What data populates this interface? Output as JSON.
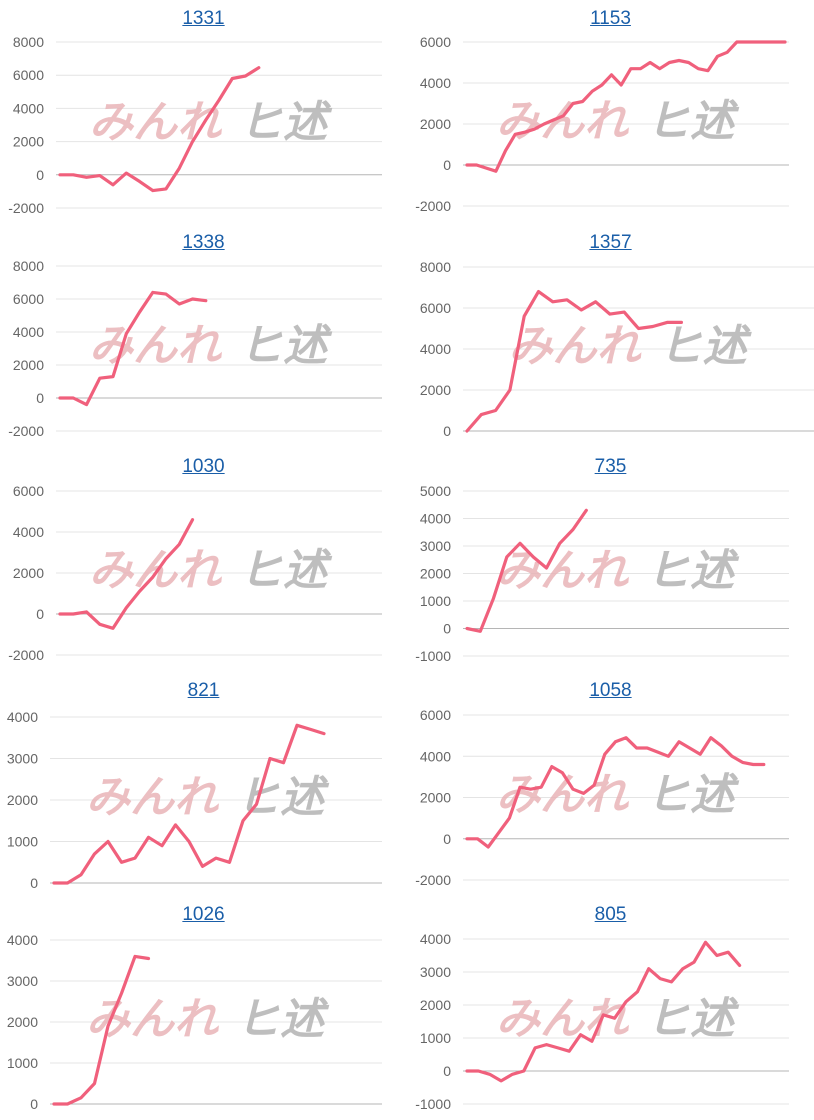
{
  "colors": {
    "series": "#f0607c",
    "title_link": "#1a5ea8",
    "watermark_left": "#e8b0b4",
    "watermark_right": "#b8b8b8"
  },
  "watermark": {
    "left_text": "みんれ",
    "right_text": "ヒ述"
  },
  "chart_data": [
    {
      "type": "line",
      "title": "1331",
      "xlabel": "",
      "ylabel": "",
      "y_ticks": [
        "8000",
        "6000",
        "4000",
        "2000",
        "0",
        "-2000"
      ],
      "ylim": [
        -2000,
        8000
      ],
      "x": [
        0,
        1,
        2,
        3,
        4,
        5,
        6,
        7,
        8,
        9,
        10,
        11,
        12,
        13,
        14,
        15
      ],
      "values": [
        0,
        0,
        -150,
        -50,
        -600,
        100,
        -400,
        -950,
        -850,
        400,
        2000,
        3300,
        4500,
        5800,
        5950,
        6450
      ]
    },
    {
      "type": "line",
      "title": "1153",
      "xlabel": "",
      "ylabel": "",
      "y_ticks": [
        "6000",
        "4000",
        "2000",
        "0",
        "-2000"
      ],
      "ylim": [
        -2000,
        6000
      ],
      "x": [
        0,
        1,
        2,
        3,
        4,
        5,
        6,
        7,
        8,
        9,
        10,
        11,
        12,
        13,
        14,
        15,
        16,
        17,
        18,
        19,
        20,
        21,
        22,
        23,
        24,
        25,
        26,
        27,
        28,
        29,
        30,
        31,
        32,
        33
      ],
      "values": [
        0,
        0,
        -150,
        -300,
        700,
        1500,
        1600,
        1750,
        2000,
        2200,
        2400,
        3000,
        3100,
        3600,
        3900,
        4400,
        3900,
        4700,
        4700,
        5000,
        4700,
        5000,
        5100,
        5000,
        4700,
        4600,
        5300,
        5500,
        6000,
        6000,
        6000,
        6000,
        6000,
        6000
      ]
    },
    {
      "type": "line",
      "title": "1338",
      "xlabel": "",
      "ylabel": "",
      "y_ticks": [
        "8000",
        "6000",
        "4000",
        "2000",
        "0",
        "-2000"
      ],
      "ylim": [
        -2000,
        8000
      ],
      "x": [
        0,
        1,
        2,
        3,
        4,
        5,
        6,
        7,
        8,
        9,
        10,
        11
      ],
      "values": [
        0,
        0,
        -400,
        1200,
        1300,
        3900,
        5200,
        6400,
        6300,
        5700,
        6000,
        5900
      ]
    },
    {
      "type": "line",
      "title": "1357",
      "xlabel": "",
      "ylabel": "",
      "y_ticks": [
        "8000",
        "6000",
        "4000",
        "2000",
        "0"
      ],
      "ylim": [
        0,
        8000
      ],
      "x": [
        0,
        1,
        2,
        3,
        4,
        5,
        6,
        7,
        8,
        9,
        10,
        11,
        12,
        13,
        14,
        15
      ],
      "values": [
        0,
        800,
        1000,
        2000,
        5600,
        6800,
        6300,
        6400,
        5900,
        6300,
        5700,
        5800,
        5000,
        5100,
        5300,
        5300
      ]
    },
    {
      "type": "line",
      "title": "1030",
      "xlabel": "",
      "ylabel": "",
      "y_ticks": [
        "6000",
        "4000",
        "2000",
        "0",
        "-2000"
      ],
      "ylim": [
        -2000,
        6000
      ],
      "x": [
        0,
        1,
        2,
        3,
        4,
        5,
        6,
        7,
        8,
        9,
        10
      ],
      "values": [
        0,
        0,
        100,
        -500,
        -700,
        300,
        1100,
        1800,
        2700,
        3400,
        4600
      ]
    },
    {
      "type": "line",
      "title": "735",
      "xlabel": "",
      "ylabel": "",
      "y_ticks": [
        "5000",
        "4000",
        "3000",
        "2000",
        "1000",
        "0",
        "-1000"
      ],
      "ylim": [
        -1000,
        5000
      ],
      "x": [
        0,
        1,
        2,
        3,
        4,
        5,
        6,
        7,
        8,
        9
      ],
      "values": [
        0,
        -100,
        1100,
        2600,
        3100,
        2600,
        2200,
        3100,
        3600,
        4300
      ]
    },
    {
      "type": "line",
      "title": "821",
      "xlabel": "",
      "ylabel": "",
      "y_ticks": [
        "4000",
        "3000",
        "2000",
        "1000",
        "0"
      ],
      "ylim": [
        0,
        4000
      ],
      "x": [
        0,
        1,
        2,
        3,
        4,
        5,
        6,
        7,
        8,
        9,
        10,
        11,
        12,
        13,
        14,
        15,
        16,
        17,
        18,
        19,
        20
      ],
      "values": [
        0,
        0,
        200,
        700,
        1000,
        500,
        600,
        1100,
        900,
        1400,
        1000,
        400,
        600,
        500,
        1500,
        1900,
        3000,
        2900,
        3800,
        3700,
        3600
      ]
    },
    {
      "type": "line",
      "title": "1058",
      "xlabel": "",
      "ylabel": "",
      "y_ticks": [
        "6000",
        "4000",
        "2000",
        "0",
        "-2000"
      ],
      "ylim": [
        -2000,
        6000
      ],
      "x": [
        0,
        1,
        2,
        3,
        4,
        5,
        6,
        7,
        8,
        9,
        10,
        11,
        12,
        13,
        14,
        15,
        16,
        17,
        18,
        19,
        20,
        21,
        22,
        23,
        24,
        25,
        26,
        27,
        28
      ],
      "values": [
        0,
        0,
        -400,
        300,
        1000,
        2500,
        2400,
        2500,
        3500,
        3200,
        2400,
        2200,
        2600,
        4100,
        4700,
        4900,
        4400,
        4400,
        4200,
        4000,
        4700,
        4400,
        4100,
        4900,
        4500,
        4000,
        3700,
        3600,
        3600
      ]
    },
    {
      "type": "line",
      "title": "1026",
      "xlabel": "",
      "ylabel": "",
      "y_ticks": [
        "4000",
        "3000",
        "2000",
        "1000",
        "0"
      ],
      "ylim": [
        0,
        4000
      ],
      "x": [
        0,
        1,
        2,
        3,
        4,
        5,
        6,
        7
      ],
      "values": [
        0,
        0,
        150,
        500,
        1900,
        2700,
        3600,
        3550
      ]
    },
    {
      "type": "line",
      "title": "805",
      "xlabel": "",
      "ylabel": "",
      "y_ticks": [
        "4000",
        "3000",
        "2000",
        "1000",
        "0",
        "-1000"
      ],
      "ylim": [
        -1000,
        4000
      ],
      "x": [
        0,
        1,
        2,
        3,
        4,
        5,
        6,
        7,
        8,
        9,
        10,
        11,
        12,
        13,
        14,
        15,
        16,
        17,
        18,
        19,
        20,
        21,
        22,
        23,
        24
      ],
      "values": [
        0,
        0,
        -100,
        -300,
        -100,
        0,
        700,
        800,
        700,
        600,
        1100,
        900,
        1700,
        1600,
        2100,
        2400,
        3100,
        2800,
        2700,
        3100,
        3300,
        3900,
        3500,
        3600,
        3200
      ]
    }
  ]
}
